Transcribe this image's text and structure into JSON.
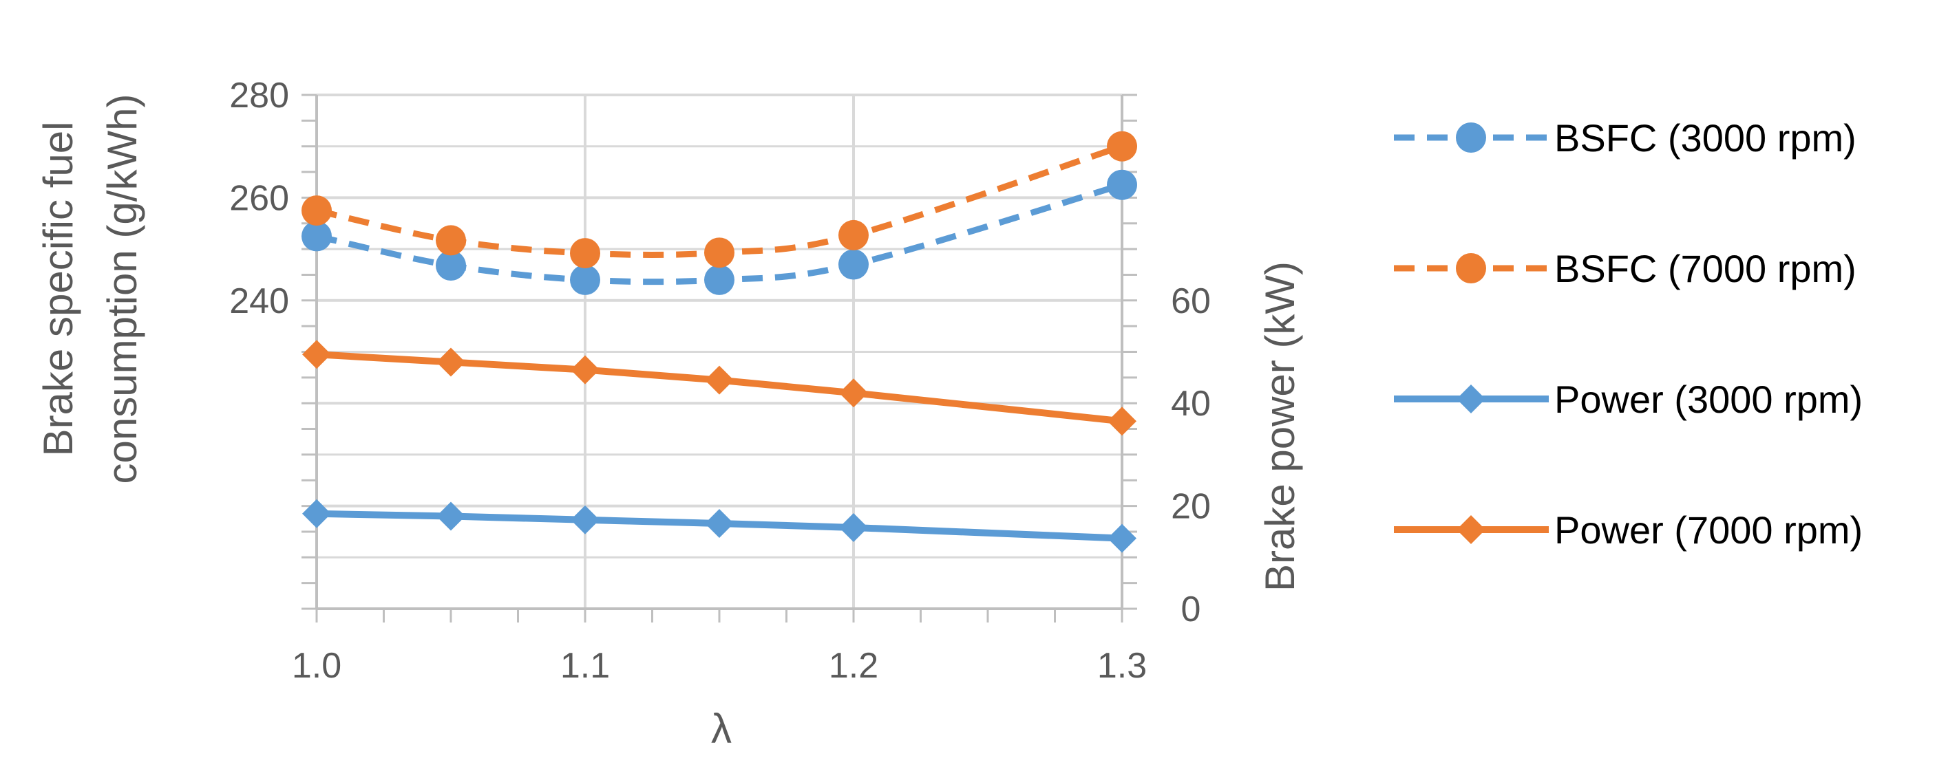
{
  "chart_data": {
    "type": "line",
    "x": [
      1.0,
      1.05,
      1.1,
      1.15,
      1.2,
      1.3
    ],
    "xlabel": "λ",
    "xlim": [
      1.0,
      1.3
    ],
    "xticks": [
      1.0,
      1.1,
      1.2,
      1.3
    ],
    "xtick_labels": [
      "1.0",
      "1.1",
      "1.2",
      "1.3"
    ],
    "ylabel_left_line1": "Brake specific fuel",
    "ylabel_left_line2": "consumption (g/kWh)",
    "ylim_left": [
      180,
      280
    ],
    "yticks_left": [
      240,
      260,
      280
    ],
    "ytick_labels_left": [
      "240",
      "260",
      "280"
    ],
    "ylabel_right": "Brake power (kW)",
    "ylim_right": [
      0,
      100
    ],
    "yticks_right": [
      0,
      20,
      40,
      60
    ],
    "ytick_labels_right": [
      "0",
      "20",
      "40",
      "60"
    ],
    "grid": true,
    "legend_position": "right",
    "series": [
      {
        "name": "BSFC (3000 rpm)",
        "axis": "left",
        "style": "dashed",
        "marker": "circle",
        "color": "#5B9BD5",
        "values": [
          252.5,
          246.8,
          244.0,
          244.0,
          247.0,
          262.5
        ]
      },
      {
        "name": "BSFC (7000 rpm)",
        "axis": "left",
        "style": "dashed",
        "marker": "circle",
        "color": "#ED7D31",
        "values": [
          257.5,
          251.7,
          249.2,
          249.3,
          252.7,
          270.0
        ]
      },
      {
        "name": "Power (3000 rpm)",
        "axis": "right",
        "style": "solid",
        "marker": "diamond",
        "color": "#5B9BD5",
        "values": [
          18.5,
          18.0,
          17.3,
          16.6,
          15.8,
          13.7
        ]
      },
      {
        "name": "Power (7000 rpm)",
        "axis": "right",
        "style": "solid",
        "marker": "diamond",
        "color": "#ED7D31",
        "values": [
          49.5,
          48.0,
          46.5,
          44.5,
          42.0,
          36.5
        ]
      }
    ]
  }
}
